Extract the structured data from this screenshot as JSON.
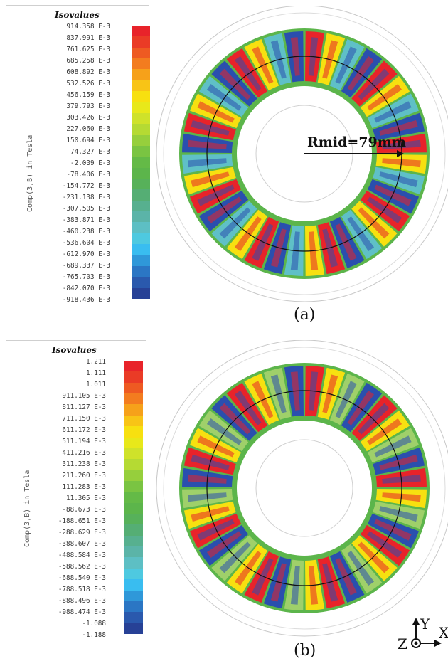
{
  "panels": [
    {
      "legend_title": "Isovalues",
      "legend_unit": "Comp(3,B) in Tesla",
      "legend_values": [
        "914.358 E-3",
        "837.991 E-3",
        "761.625 E-3",
        "685.258 E-3",
        "608.892 E-3",
        "532.526 E-3",
        "456.159 E-3",
        "379.793 E-3",
        "303.426 E-3",
        "227.060 E-3",
        "150.694 E-3",
        "74.327 E-3",
        "-2.039 E-3",
        "-78.406 E-3",
        "-154.772 E-3",
        "-231.138 E-3",
        "-307.505 E-3",
        "-383.871 E-3",
        "-460.238 E-3",
        "-536.604 E-3",
        "-612.970 E-3",
        "-689.337 E-3",
        "-765.703 E-3",
        "-842.070 E-3",
        "-918.436 E-3"
      ],
      "annotation": "Rmid=79mm",
      "caption": "(a)"
    },
    {
      "legend_title": "Isovalues",
      "legend_unit": "Comp(3,B) in Tesla",
      "legend_values": [
        "1.211",
        "1.111",
        "1.011",
        "911.105 E-3",
        "811.127 E-3",
        "711.150 E-3",
        "611.172 E-3",
        "511.194 E-3",
        "411.216 E-3",
        "311.238 E-3",
        "211.260 E-3",
        "111.283 E-3",
        "11.305 E-3",
        "-88.673 E-3",
        "-188.651 E-3",
        "-288.629 E-3",
        "-388.607 E-3",
        "-488.584 E-3",
        "-588.562 E-3",
        "-688.540 E-3",
        "-788.518 E-3",
        "-888.496 E-3",
        "-988.474 E-3",
        "-1.088",
        "-1.188"
      ],
      "annotation": "",
      "caption": "(b)"
    }
  ],
  "colormap": [
    "#e8232a",
    "#ea3b26",
    "#ee5a22",
    "#f37c1f",
    "#f6a11a",
    "#f8c416",
    "#f7e010",
    "#e8e81a",
    "#cfe22a",
    "#b5da33",
    "#96cf3c",
    "#7ac442",
    "#64ba47",
    "#5cb54b",
    "#57b15a",
    "#55ae74",
    "#57b08f",
    "#5bb4a8",
    "#5dbfc4",
    "#4ec9e0",
    "#39bdf0",
    "#2f98d9",
    "#2b76c4",
    "#2a59ad",
    "#274196"
  ],
  "axis_labels": {
    "y": "Y",
    "x": "X",
    "z": "Z"
  },
  "colors": {
    "red": "#e8232a",
    "yellow": "#f7e010",
    "blue": "#2a4fae",
    "teal": "#5fc0c7",
    "green": "#5cb54b",
    "lightgreen": "#9fd06a",
    "ring_outline": "#c8c8c8"
  }
}
